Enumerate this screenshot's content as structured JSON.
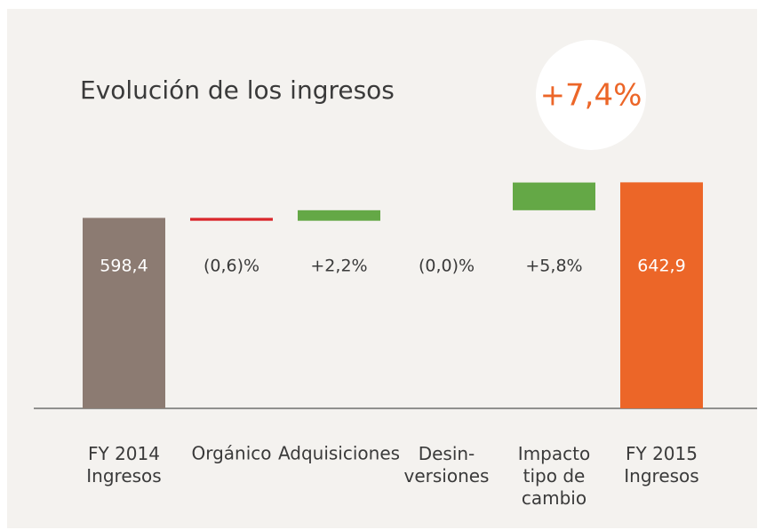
{
  "chart_data": {
    "type": "waterfall",
    "title": "Evolución de los ingresos",
    "annotation": "+7,4%",
    "categories": [
      "FY 2014\nIngresos",
      "Orgánico",
      "Adquisiciones",
      "Desin-\nversiones",
      "Impacto\ntipo de\ncambio",
      "FY 2015\nIngresos"
    ],
    "measure": [
      "absolute",
      "relative",
      "relative",
      "relative",
      "relative",
      "absolute"
    ],
    "values": [
      598.4,
      -0.6,
      2.2,
      0.0,
      5.8,
      642.9
    ],
    "value_labels": [
      "598,4",
      "(0,6)%",
      "+2,2%",
      "(0,0)%",
      "+5,8%",
      "642,9"
    ],
    "colors": [
      "#8c7b72",
      "#d9262b",
      "#64a846",
      "#64a846",
      "#64a846",
      "#ec6628"
    ],
    "ylim": [
      360,
      680
    ]
  }
}
